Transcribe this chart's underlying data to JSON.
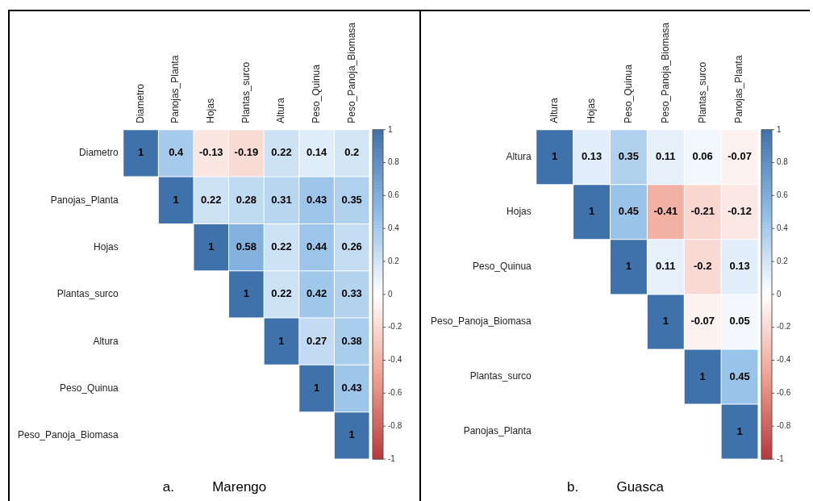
{
  "chart_data": [
    {
      "type": "heatmap",
      "title": "a.          Marengo",
      "categories": [
        "Diametro",
        "Panojas_Planta",
        "Hojas",
        "Plantas_surco",
        "Altura",
        "Peso_Quinua",
        "Peso_Panoja_Biomasa"
      ],
      "y_categories": [
        "Diametro",
        "Panojas_Planta",
        "Hojas",
        "Plantas_surco",
        "Altura",
        "Peso_Quinua",
        "Peso_Panoja_Biomasa"
      ],
      "cells": [
        [
          1,
          0.4,
          -0.13,
          -0.19,
          0.22,
          0.14,
          0.2
        ],
        [
          null,
          1,
          0.22,
          0.28,
          0.31,
          0.43,
          0.35
        ],
        [
          null,
          null,
          1,
          0.58,
          0.22,
          0.44,
          0.26
        ],
        [
          null,
          null,
          null,
          1,
          0.22,
          0.42,
          0.33
        ],
        [
          null,
          null,
          null,
          null,
          1,
          0.27,
          0.38
        ],
        [
          null,
          null,
          null,
          null,
          null,
          1,
          0.43
        ],
        [
          null,
          null,
          null,
          null,
          null,
          null,
          1
        ]
      ],
      "data_labels": true,
      "clim": [
        -1,
        1
      ],
      "cticks": [
        -1,
        -0.8,
        -0.6,
        -0.4,
        -0.2,
        0,
        0.2,
        0.4,
        0.6,
        0.8,
        1
      ]
    },
    {
      "type": "heatmap",
      "title": "b.          Guasca",
      "categories": [
        "Altura",
        "Hojas",
        "Peso_Quinua",
        "Peso_Panoja_Biomasa",
        "Plantas_surco",
        "Panojas_Planta"
      ],
      "y_categories": [
        "Altura",
        "Hojas",
        "Peso_Quinua",
        "Peso_Panoja_Biomasa",
        "Plantas_surco",
        "Panojas_Planta"
      ],
      "cells": [
        [
          1,
          0.13,
          0.35,
          0.11,
          0.06,
          -0.07
        ],
        [
          null,
          1,
          0.45,
          -0.41,
          -0.21,
          -0.12
        ],
        [
          null,
          null,
          1,
          0.11,
          -0.2,
          0.13
        ],
        [
          null,
          null,
          null,
          1,
          -0.07,
          0.05
        ],
        [
          null,
          null,
          null,
          null,
          1,
          0.45
        ],
        [
          null,
          null,
          null,
          null,
          null,
          1
        ]
      ],
      "data_labels": true,
      "clim": [
        -1,
        1
      ],
      "cticks": [
        -1,
        -0.8,
        -0.6,
        -0.4,
        -0.2,
        0,
        0.2,
        0.4,
        0.6,
        0.8,
        1
      ]
    }
  ]
}
